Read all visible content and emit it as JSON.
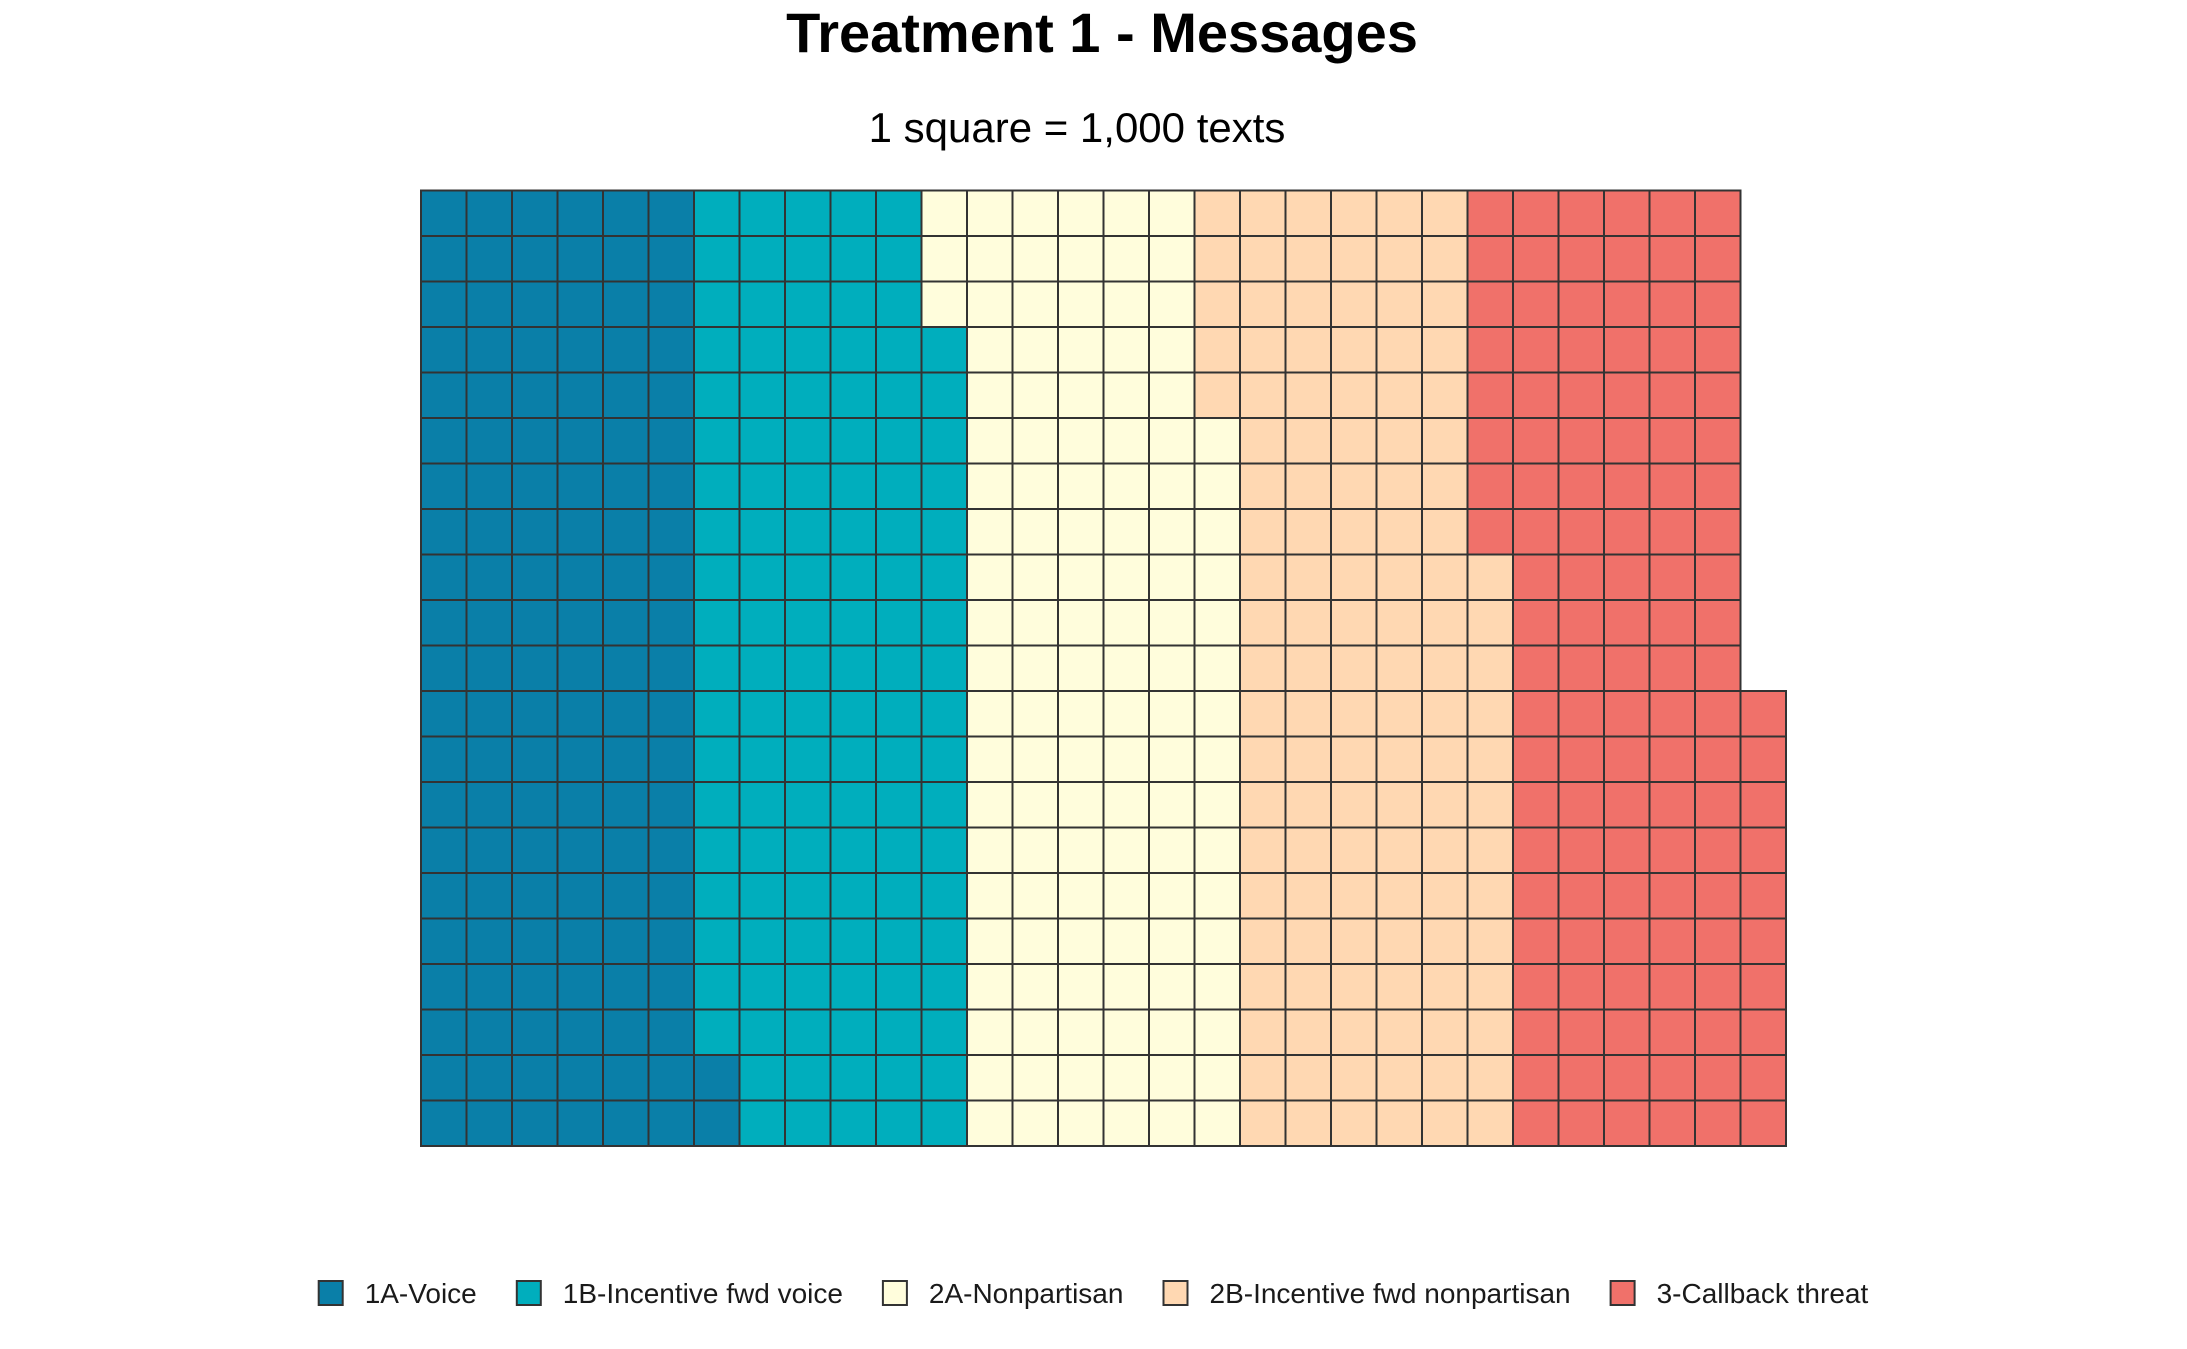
{
  "chart_data": {
    "type": "waffle",
    "title": "Treatment 1 - Messages",
    "subtitle": "1 square = 1,000 texts",
    "grid": {
      "rows": 21,
      "fill_order": "column-major, bottom-to-top, left-to-right"
    },
    "categories": [
      "1A-Voice",
      "1B-Incentive fwd voice",
      "2A-Nonpartisan",
      "2B-Incentive fwd nonpartisan",
      "3-Callback threat"
    ],
    "values": [
      128,
      121,
      124,
      123,
      123
    ],
    "series_colors": [
      "#0A7FA8",
      "#00AEBD",
      "#FFFDDC",
      "#FFD8B2",
      "#F0716A"
    ],
    "border_color": "#333333",
    "legend_placement": "bottom"
  }
}
